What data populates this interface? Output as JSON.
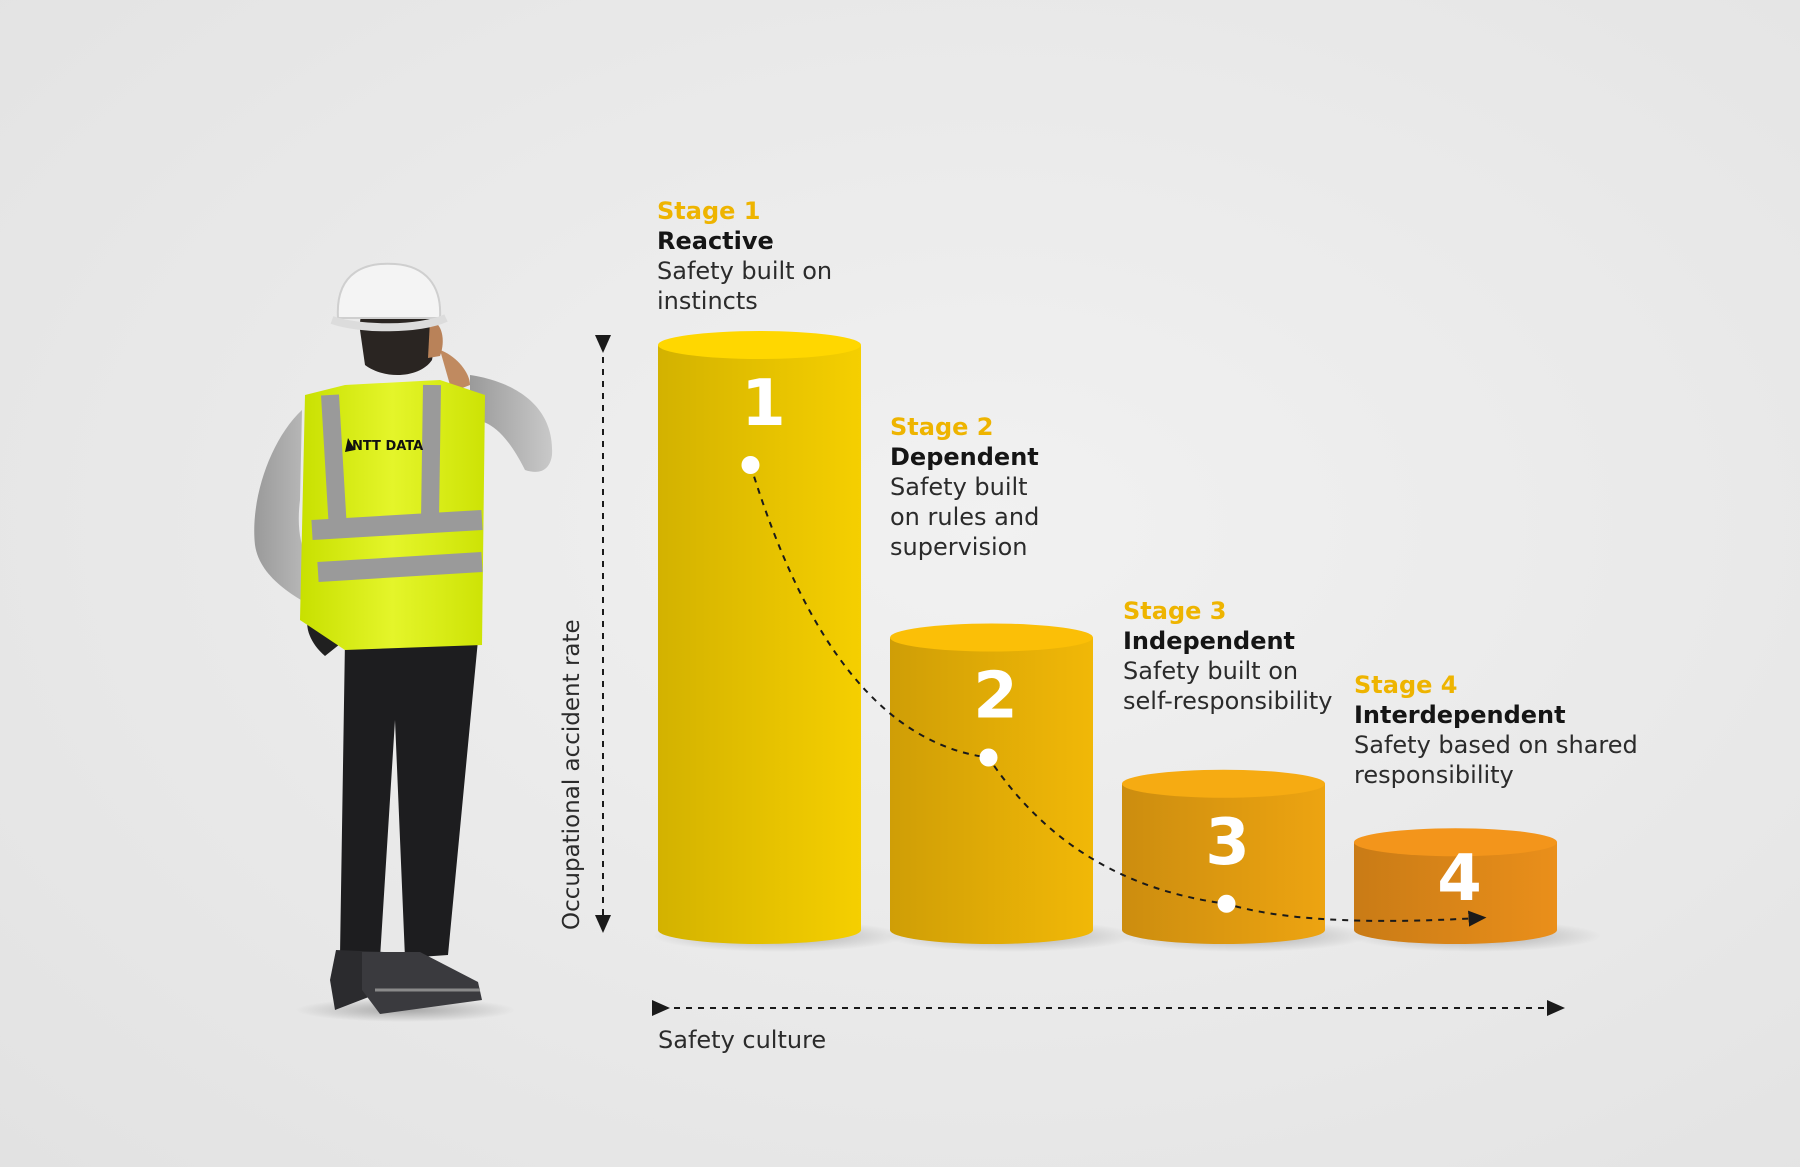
{
  "chart_data": {
    "type": "bar",
    "title": "",
    "xlabel": "Safety culture",
    "ylabel": "Occupational accident rate",
    "categories": [
      "1",
      "2",
      "3",
      "4"
    ],
    "values": [
      4,
      2,
      1,
      0.6
    ],
    "trend": "dashed curve through the stages",
    "stages": [
      {
        "stage": "Stage 1",
        "name": "Reactive",
        "description": "Safety built on\ninstincts"
      },
      {
        "stage": "Stage 2",
        "name": "Dependent",
        "description": "Safety built\non rules and\nsupervision"
      },
      {
        "stage": "Stage 3",
        "name": "Independent",
        "description": "Safety built on\nself-responsibility"
      },
      {
        "stage": "Stage 4",
        "name": "Interdependent",
        "description": "Safety based on shared\nresponsibility"
      }
    ]
  },
  "vest_logo_text": "NTT DATA",
  "colors": {
    "bar_colors": [
      "#f5cf00",
      "#f1b807",
      "#eda411",
      "#ea8f1a"
    ],
    "stage_label": "#eeb400",
    "marker": "#ffffff",
    "axis": "#1a1a1a"
  }
}
